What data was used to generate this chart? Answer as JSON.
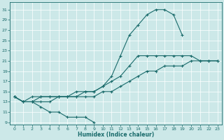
{
  "xlabel": "Humidex (Indice chaleur)",
  "bg_color": "#cce8e8",
  "line_color": "#1a6b6b",
  "grid_color": "#b0d4d4",
  "xlim": [
    -0.5,
    23.5
  ],
  "ylim": [
    8.5,
    32.5
  ],
  "xticks": [
    0,
    1,
    2,
    3,
    4,
    5,
    6,
    7,
    8,
    9,
    10,
    11,
    12,
    13,
    14,
    15,
    16,
    17,
    18,
    19,
    20,
    21,
    22,
    23
  ],
  "yticks": [
    9,
    11,
    13,
    15,
    17,
    19,
    21,
    23,
    25,
    27,
    29,
    31
  ],
  "lines": [
    {
      "x": [
        0,
        1,
        2,
        3,
        4,
        5,
        6,
        7,
        8,
        9
      ],
      "y": [
        14,
        13,
        13,
        12,
        11,
        11,
        10,
        10,
        10,
        9
      ]
    },
    {
      "x": [
        0,
        1,
        2,
        3,
        4,
        5,
        6,
        7,
        8,
        9,
        10,
        11,
        12,
        13,
        14,
        15,
        16,
        17,
        18,
        19,
        20,
        21,
        22,
        23
      ],
      "y": [
        14,
        13,
        13,
        13,
        13,
        14,
        14,
        14,
        14,
        14,
        15,
        15,
        16,
        17,
        18,
        19,
        19,
        20,
        20,
        20,
        21,
        21,
        21,
        21
      ]
    },
    {
      "x": [
        0,
        1,
        2,
        3,
        4,
        5,
        6,
        7,
        8,
        9,
        10,
        11,
        12,
        13,
        14,
        15,
        16,
        17,
        18,
        19,
        20,
        21,
        22,
        23
      ],
      "y": [
        14,
        13,
        13,
        14,
        14,
        14,
        14,
        14,
        15,
        15,
        16,
        17,
        18,
        20,
        22,
        22,
        22,
        22,
        22,
        22,
        22,
        21,
        21,
        21
      ]
    },
    {
      "x": [
        0,
        1,
        2,
        3,
        4,
        5,
        6,
        7,
        8,
        9,
        10,
        11,
        12,
        13,
        14,
        15,
        16,
        17,
        18,
        19
      ],
      "y": [
        14,
        13,
        14,
        14,
        14,
        14,
        14,
        15,
        15,
        15,
        16,
        18,
        22,
        26,
        28,
        30,
        31,
        31,
        30,
        26
      ]
    }
  ]
}
